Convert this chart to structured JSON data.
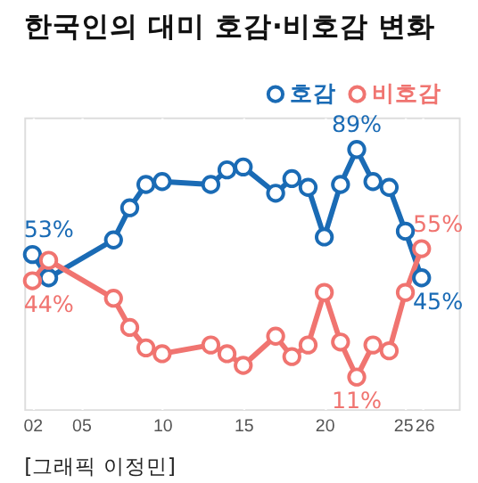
{
  "chart_data": {
    "type": "line",
    "title": "한국인의 대미 호감·비호감 변화",
    "x": [
      2002,
      2003,
      2007,
      2008,
      2009,
      2010,
      2013,
      2014,
      2015,
      2017,
      2018,
      2019,
      2020,
      2021,
      2022,
      2023,
      2024,
      2025,
      2026
    ],
    "series": [
      {
        "name": "호감",
        "color": "#1a6bb5",
        "values": [
          53,
          45,
          58,
          69,
          77,
          78,
          77,
          82,
          83,
          74,
          79,
          76,
          59,
          77,
          89,
          78,
          76,
          61,
          45
        ],
        "value_labels": [
          "53%",
          null,
          null,
          null,
          null,
          null,
          null,
          null,
          null,
          null,
          null,
          null,
          null,
          null,
          "89%",
          null,
          null,
          null,
          "45%"
        ]
      },
      {
        "name": "비호감",
        "color": "#f07470",
        "values": [
          44,
          51,
          38,
          28,
          21,
          19,
          22,
          19,
          15,
          25,
          18,
          22,
          40,
          23,
          11,
          22,
          20,
          40,
          55
        ],
        "value_labels": [
          "44%",
          null,
          null,
          null,
          null,
          null,
          null,
          null,
          null,
          null,
          null,
          null,
          null,
          null,
          "11%",
          null,
          null,
          null,
          "55%"
        ]
      }
    ],
    "xlim": [
      2001.5,
      2028.3
    ],
    "ylim": [
      0,
      100
    ],
    "xticks": [
      {
        "value": 2002,
        "label": "02"
      },
      {
        "value": 2005,
        "label": "05"
      },
      {
        "value": 2010,
        "label": "10"
      },
      {
        "value": 2015,
        "label": "15"
      },
      {
        "value": 2020,
        "label": "20"
      },
      {
        "value": 2025,
        "label": "25"
      },
      {
        "value": 2026,
        "label": "26"
      }
    ],
    "tick_labels": "x",
    "grid": "x",
    "legend": "top right",
    "marker": "circle",
    "line_style": "solid",
    "annotations": [
      "[그래픽 이정민]"
    ]
  }
}
